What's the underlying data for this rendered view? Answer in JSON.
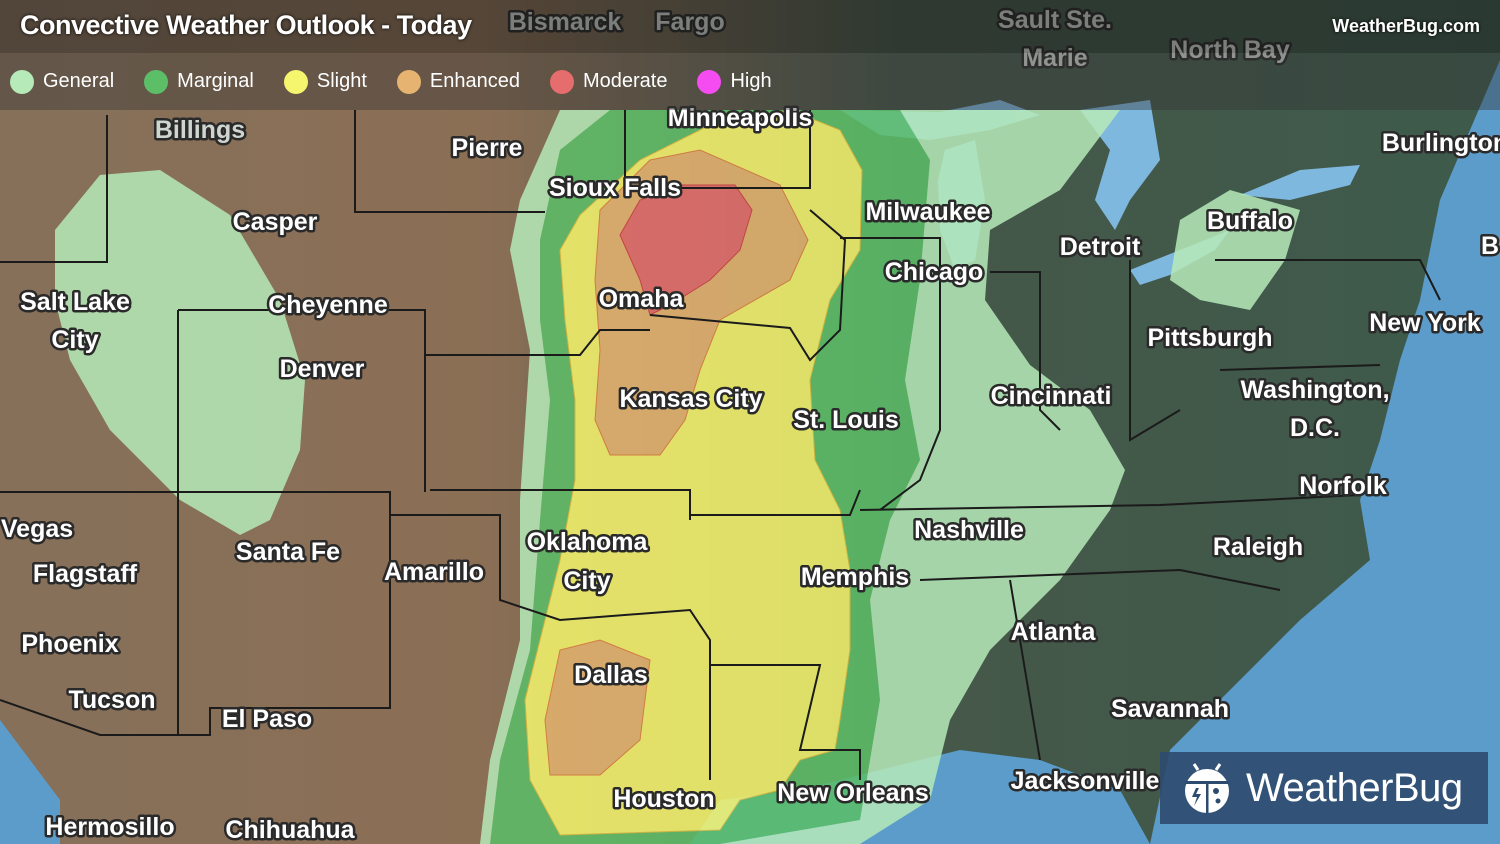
{
  "header": {
    "title": "Convective Weather Outlook - Today",
    "site": "WeatherBug.com"
  },
  "legend": [
    {
      "label": "General",
      "color": "#b6eab9"
    },
    {
      "label": "Marginal",
      "color": "#5cbf68"
    },
    {
      "label": "Slight",
      "color": "#f6f66e"
    },
    {
      "label": "Enhanced",
      "color": "#e6b470"
    },
    {
      "label": "Moderate",
      "color": "#e66d6d"
    },
    {
      "label": "High",
      "color": "#f54cf2"
    }
  ],
  "cities": {
    "bismarck": "Bismarck",
    "fargo": "Fargo",
    "sault1": "Sault Ste.",
    "sault2": "Marie",
    "northbay": "North Bay",
    "minneapolis": "Minneapolis",
    "pierre": "Pierre",
    "burlington": "Burlington",
    "siouxfalls": "Sioux Falls",
    "casper": "Casper",
    "milwaukee": "Milwaukee",
    "detroit": "Detroit",
    "buffalo": "Buffalo",
    "bcut": "B",
    "slc1": "Salt Lake",
    "slc2": "City",
    "cheyenne": "Cheyenne",
    "omaha": "Omaha",
    "chicago": "Chicago",
    "pittsburgh": "Pittsburgh",
    "newyork": "New York",
    "denver": "Denver",
    "kansascity": "Kansas City",
    "stlouis": "St. Louis",
    "cincinnati": "Cincinnati",
    "dc1": "Washington,",
    "dc2": "D.C.",
    "norfolk": "Norfolk",
    "nashville": "Nashville",
    "raleigh": "Raleigh",
    "okc1": "Oklahoma",
    "okc2": "City",
    "santafe": "Santa Fe",
    "amarillo": "Amarillo",
    "flagstaff": "Flagstaff",
    "memphis": "Memphis",
    "phoenix": "Phoenix",
    "atlanta": "Atlanta",
    "dallas": "Dallas",
    "tucson": "Tucson",
    "elpaso": "El Paso",
    "savannah": "Savannah",
    "houston": "Houston",
    "neworleans": "New Orleans",
    "jacksonville": "Jacksonville",
    "hermosillo": "Hermosillo",
    "chihuahua": "Chihuahua",
    "lasvegas": "Las Vegas",
    "billings": "Billings"
  },
  "logo": {
    "text": "WeatherBug"
  }
}
